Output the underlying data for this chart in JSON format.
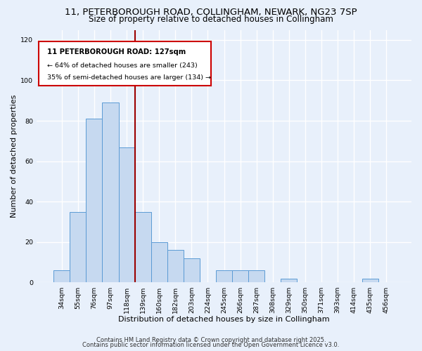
{
  "title1": "11, PETERBOROUGH ROAD, COLLINGHAM, NEWARK, NG23 7SP",
  "title2": "Size of property relative to detached houses in Collingham",
  "xlabel": "Distribution of detached houses by size in Collingham",
  "ylabel": "Number of detached properties",
  "bar_labels": [
    "34sqm",
    "55sqm",
    "76sqm",
    "97sqm",
    "118sqm",
    "139sqm",
    "160sqm",
    "182sqm",
    "203sqm",
    "224sqm",
    "245sqm",
    "266sqm",
    "287sqm",
    "308sqm",
    "329sqm",
    "350sqm",
    "371sqm",
    "393sqm",
    "414sqm",
    "435sqm",
    "456sqm"
  ],
  "bar_values": [
    6,
    35,
    81,
    89,
    67,
    35,
    20,
    16,
    12,
    0,
    6,
    6,
    6,
    0,
    2,
    0,
    0,
    0,
    0,
    2,
    0
  ],
  "bar_color": "#c6d9f0",
  "bar_edge_color": "#5b9bd5",
  "ylim": [
    0,
    125
  ],
  "yticks": [
    0,
    20,
    40,
    60,
    80,
    100,
    120
  ],
  "vline_x": 4.5,
  "vline_color": "#9b0000",
  "annotation_line1": "11 PETERBOROUGH ROAD: 127sqm",
  "annotation_line2": "← 64% of detached houses are smaller (243)",
  "annotation_line3": "35% of semi-detached houses are larger (134) →",
  "footer1": "Contains HM Land Registry data © Crown copyright and database right 2025.",
  "footer2": "Contains public sector information licensed under the Open Government Licence v3.0.",
  "bg_color": "#e8f0fb",
  "plot_bg_color": "#e8f0fb",
  "grid_color": "#ffffff",
  "title_fontsize": 9.5,
  "subtitle_fontsize": 8.5,
  "axis_label_fontsize": 8,
  "tick_fontsize": 6.8,
  "footer_fontsize": 6.0,
  "ann_fontsize1": 7.2,
  "ann_fontsize2": 6.8
}
